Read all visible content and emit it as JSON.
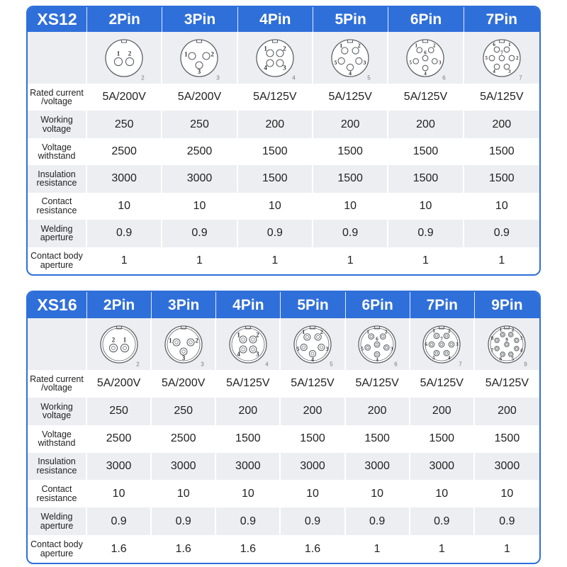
{
  "colors": {
    "accent": "#2f6fd9",
    "header_text": "#ffffff",
    "row_shade": "#eceef2",
    "text": "#222222",
    "outline": "#5f6368"
  },
  "tables": [
    {
      "model": "XS12",
      "columns": [
        {
          "header": "2Pin",
          "diagram": {
            "pins": [
              "1",
              "2"
            ],
            "count_label": "2"
          }
        },
        {
          "header": "3Pin",
          "diagram": {
            "pins": [
              "1",
              "2",
              "3"
            ],
            "count_label": "3"
          }
        },
        {
          "header": "4Pin",
          "diagram": {
            "pins": [
              "1",
              "2",
              "3",
              "4"
            ],
            "count_label": "4"
          }
        },
        {
          "header": "5Pin",
          "diagram": {
            "pins": [
              "1",
              "2",
              "3",
              "4",
              "5"
            ],
            "count_label": "5"
          }
        },
        {
          "header": "6Pin",
          "diagram": {
            "pins": [
              "1",
              "2",
              "3",
              "4",
              "5",
              "6"
            ],
            "count_label": "6"
          }
        },
        {
          "header": "7Pin",
          "diagram": {
            "pins": [
              "6",
              "1",
              "2",
              "3",
              "4",
              "5",
              "7"
            ],
            "count_label": "7"
          }
        }
      ],
      "rows": [
        {
          "label": "Rated current\n/voltage",
          "values": [
            "5A/200V",
            "5A/200V",
            "5A/125V",
            "5A/125V",
            "5A/125V",
            "5A/125V"
          ]
        },
        {
          "label": "Working\nvoltage",
          "values": [
            "250",
            "250",
            "200",
            "200",
            "200",
            "200"
          ]
        },
        {
          "label": "Voltage\nwithstand",
          "values": [
            "2500",
            "2500",
            "1500",
            "1500",
            "1500",
            "1500"
          ]
        },
        {
          "label": "Insulation\nresistance",
          "values": [
            "3000",
            "3000",
            "1500",
            "1500",
            "1500",
            "1500"
          ]
        },
        {
          "label": "Contact\nresistance",
          "values": [
            "10",
            "10",
            "10",
            "10",
            "10",
            "10"
          ]
        },
        {
          "label": "Welding\naperture",
          "values": [
            "0.9",
            "0.9",
            "0.9",
            "0.9",
            "0.9",
            "0.9"
          ]
        },
        {
          "label": "Contact body\naperture",
          "values": [
            "1",
            "1",
            "1",
            "1",
            "1",
            "1"
          ]
        }
      ]
    },
    {
      "model": "XS16",
      "columns": [
        {
          "header": "2Pin",
          "diagram": {
            "pins": [
              "2",
              "1"
            ],
            "count_label": "2"
          }
        },
        {
          "header": "3Pin",
          "diagram": {
            "pins": [
              "1",
              "2",
              "3"
            ],
            "count_label": "3"
          }
        },
        {
          "header": "4Pin",
          "diagram": {
            "pins": [
              "1",
              "2",
              "3",
              "4"
            ],
            "count_label": "4"
          }
        },
        {
          "header": "5Pin",
          "diagram": {
            "pins": [
              "1",
              "2",
              "3",
              "4",
              "5"
            ],
            "count_label": "5"
          }
        },
        {
          "header": "6Pin",
          "diagram": {
            "pins": [
              "1",
              "2",
              "3",
              "4",
              "5",
              "6"
            ],
            "count_label": "6"
          }
        },
        {
          "header": "7Pin",
          "diagram": {
            "pins": [
              "1",
              "2",
              "3",
              "4",
              "5",
              "6",
              "7"
            ],
            "count_label": "7"
          }
        },
        {
          "header": "9Pin",
          "diagram": {
            "pins": [
              "1",
              "2",
              "3",
              "4",
              "5",
              "6",
              "7",
              "8",
              "9"
            ],
            "count_label": "9"
          }
        }
      ],
      "rows": [
        {
          "label": "Rated current\n/voltage",
          "values": [
            "5A/200V",
            "5A/200V",
            "5A/125V",
            "5A/125V",
            "5A/125V",
            "5A/125V",
            "5A/125V"
          ]
        },
        {
          "label": "Working\nvoltage",
          "values": [
            "250",
            "250",
            "200",
            "200",
            "200",
            "200",
            "200"
          ]
        },
        {
          "label": "Voltage\nwithstand",
          "values": [
            "2500",
            "2500",
            "1500",
            "1500",
            "1500",
            "1500",
            "1500"
          ]
        },
        {
          "label": "Insulation\nresistance",
          "values": [
            "3000",
            "3000",
            "3000",
            "3000",
            "3000",
            "3000",
            "3000"
          ]
        },
        {
          "label": "Contact\nresistance",
          "values": [
            "10",
            "10",
            "10",
            "10",
            "10",
            "10",
            "10"
          ]
        },
        {
          "label": "Welding\naperture",
          "values": [
            "0.9",
            "0.9",
            "0.9",
            "0.9",
            "0.9",
            "0.9",
            "0.9"
          ]
        },
        {
          "label": "Contact body\naperture",
          "values": [
            "1.6",
            "1.6",
            "1.6",
            "1.6",
            "1",
            "1",
            "1"
          ]
        }
      ]
    }
  ]
}
